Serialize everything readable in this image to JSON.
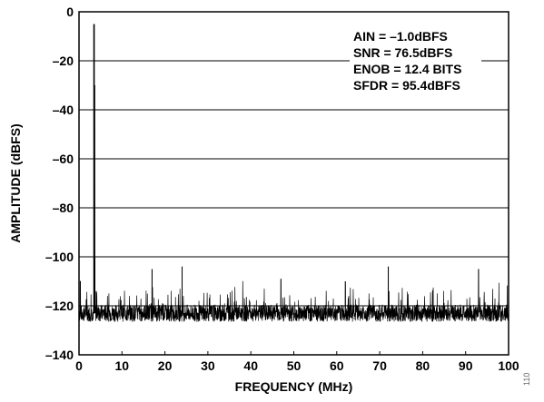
{
  "chart_data": {
    "type": "line",
    "title": "",
    "xlabel": "FREQUENCY (MHz)",
    "ylabel": "AMPLITUDE (dBFS)",
    "xlim": [
      0,
      100
    ],
    "ylim": [
      -140,
      0
    ],
    "xticks": [
      0,
      10,
      20,
      30,
      40,
      50,
      60,
      70,
      80,
      90,
      100
    ],
    "yticks": [
      0,
      -20,
      -40,
      -60,
      -80,
      -100,
      -120,
      -140
    ],
    "grid": {
      "horizontal": true,
      "vertical": false
    },
    "line_color": "#000000",
    "annotations": [
      "AIN = –1.0dBFS",
      "SNR = 76.5dBFS",
      "ENOB = 12.4 BITS",
      "SFDR = 95.4dBFS"
    ],
    "figure_number": "110",
    "noise_floor": -123,
    "series": [
      {
        "x": [
          0,
          0.3,
          3.5,
          3.6,
          3.7,
          4.0,
          17.0,
          24.0,
          47.0,
          62.0,
          72.0,
          93.0
        ],
        "values": [
          -97,
          -110,
          -5,
          -30,
          -100,
          -114,
          -105,
          -104,
          -109,
          -110,
          -104,
          -105
        ]
      }
    ]
  }
}
